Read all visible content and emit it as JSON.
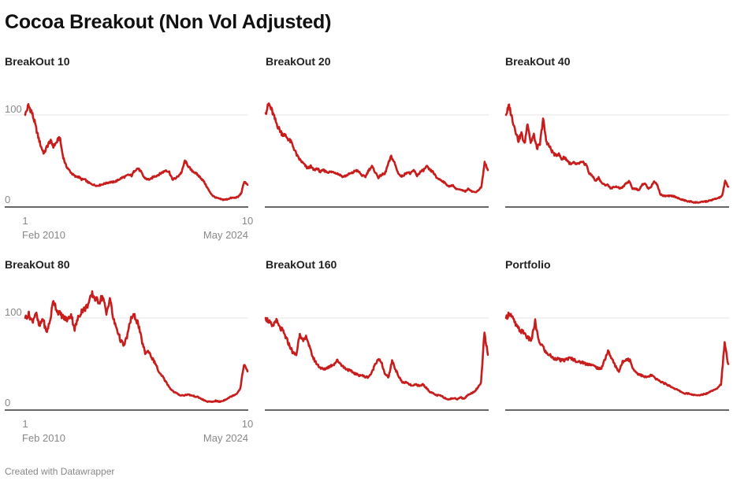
{
  "title": "Cocoa Breakout (Non Vol Adjusted)",
  "footer": "Created with Datawrapper",
  "colors": {
    "line": "#c71e1d",
    "grid": "#e6e6e6",
    "axis": "#333333",
    "tick": "#888888"
  },
  "chart_data": [
    {
      "type": "line",
      "title": "BreakOut 10",
      "x_range": [
        "1 Feb 2010",
        "10 May 2024"
      ],
      "x_ticks": [
        {
          "day": "1",
          "month": "Feb 2010"
        },
        {
          "day": "10",
          "month": "May 2024"
        }
      ],
      "y_ticks": [
        "0",
        "100"
      ],
      "ylim": [
        0,
        115
      ],
      "values": [
        100,
        110,
        104,
        92,
        78,
        66,
        58,
        66,
        72,
        66,
        70,
        76,
        56,
        45,
        40,
        36,
        33,
        33,
        30,
        30,
        27,
        25,
        24,
        23,
        24,
        25,
        26,
        27,
        27,
        28,
        30,
        32,
        33,
        35,
        34,
        40,
        42,
        38,
        32,
        30,
        30,
        33,
        34,
        36,
        38,
        40,
        38,
        30,
        31,
        34,
        38,
        50,
        45,
        40,
        38,
        35,
        32,
        28,
        22,
        16,
        12,
        10,
        9,
        8,
        8,
        9,
        10,
        10,
        11,
        15,
        28,
        24
      ]
    },
    {
      "type": "line",
      "title": "BreakOut 20",
      "x_range": [
        "1 Feb 2010",
        "10 May 2024"
      ],
      "y_ticks": [
        "0",
        "100"
      ],
      "ylim": [
        0,
        115
      ],
      "values": [
        102,
        112,
        104,
        94,
        86,
        80,
        78,
        74,
        70,
        62,
        54,
        50,
        46,
        42,
        44,
        40,
        42,
        38,
        40,
        38,
        38,
        38,
        37,
        35,
        33,
        34,
        36,
        37,
        40,
        38,
        34,
        33,
        40,
        44,
        38,
        32,
        35,
        36,
        46,
        55,
        48,
        38,
        33,
        35,
        38,
        36,
        40,
        34,
        38,
        40,
        44,
        40,
        38,
        32,
        30,
        28,
        25,
        22,
        24,
        20,
        19,
        18,
        17,
        20,
        17,
        16,
        18,
        22,
        48,
        40
      ]
    },
    {
      "type": "line",
      "title": "BreakOut 40",
      "x_range": [
        "1 Feb 2010",
        "10 May 2024"
      ],
      "y_ticks": [
        "0",
        "100"
      ],
      "ylim": [
        0,
        115
      ],
      "values": [
        100,
        110,
        96,
        84,
        72,
        80,
        68,
        92,
        70,
        78,
        64,
        68,
        96,
        72,
        66,
        60,
        56,
        58,
        52,
        54,
        50,
        46,
        48,
        46,
        48,
        48,
        46,
        36,
        34,
        28,
        32,
        26,
        24,
        24,
        20,
        22,
        22,
        20,
        22,
        26,
        28,
        20,
        20,
        18,
        24,
        26,
        20,
        22,
        28,
        24,
        14,
        12,
        12,
        12,
        12,
        11,
        9,
        8,
        7,
        6,
        6,
        5,
        5,
        5,
        6,
        6,
        7,
        8,
        9,
        10,
        12,
        28,
        22
      ]
    },
    {
      "type": "line",
      "title": "BreakOut 80",
      "x_range": [
        "1 Feb 2010",
        "10 May 2024"
      ],
      "x_ticks": [
        {
          "day": "1",
          "month": "Feb 2010"
        },
        {
          "day": "10",
          "month": "May 2024"
        }
      ],
      "y_ticks": [
        "0",
        "100"
      ],
      "ylim": [
        0,
        115
      ],
      "values": [
        100,
        104,
        96,
        106,
        90,
        100,
        84,
        96,
        120,
        108,
        104,
        100,
        98,
        104,
        88,
        100,
        108,
        110,
        116,
        126,
        120,
        118,
        124,
        104,
        122,
        98,
        88,
        76,
        70,
        82,
        100,
        102,
        94,
        76,
        62,
        64,
        56,
        50,
        40,
        36,
        30,
        24,
        20,
        18,
        16,
        16,
        17,
        16,
        15,
        14,
        12,
        10,
        9,
        9,
        10,
        9,
        10,
        12,
        14,
        16,
        18,
        24,
        50,
        42
      ]
    },
    {
      "type": "line",
      "title": "BreakOut 160",
      "x_range": [
        "1 Feb 2010",
        "10 May 2024"
      ],
      "y_ticks": [
        "0",
        "100"
      ],
      "ylim": [
        0,
        115
      ],
      "values": [
        100,
        96,
        90,
        98,
        90,
        86,
        78,
        70,
        62,
        60,
        84,
        74,
        80,
        66,
        56,
        50,
        46,
        44,
        46,
        48,
        50,
        54,
        50,
        46,
        44,
        42,
        40,
        38,
        38,
        36,
        36,
        40,
        50,
        56,
        50,
        38,
        36,
        54,
        44,
        36,
        30,
        30,
        28,
        26,
        28,
        26,
        28,
        24,
        20,
        18,
        16,
        16,
        14,
        12,
        12,
        13,
        12,
        14,
        12,
        16,
        18,
        20,
        24,
        30,
        84,
        60
      ]
    },
    {
      "type": "line",
      "title": "Portfolio",
      "x_range": [
        "1 Feb 2010",
        "10 May 2024"
      ],
      "y_ticks": [
        "0",
        "100"
      ],
      "ylim": [
        0,
        115
      ],
      "values": [
        100,
        106,
        98,
        90,
        86,
        84,
        78,
        76,
        96,
        74,
        70,
        62,
        60,
        56,
        56,
        54,
        54,
        56,
        56,
        54,
        52,
        52,
        50,
        50,
        48,
        46,
        44,
        54,
        64,
        56,
        48,
        42,
        52,
        56,
        54,
        44,
        40,
        38,
        36,
        36,
        38,
        34,
        32,
        30,
        28,
        26,
        24,
        22,
        20,
        18,
        18,
        17,
        16,
        16,
        17,
        18,
        20,
        22,
        24,
        28,
        72,
        50
      ]
    }
  ]
}
